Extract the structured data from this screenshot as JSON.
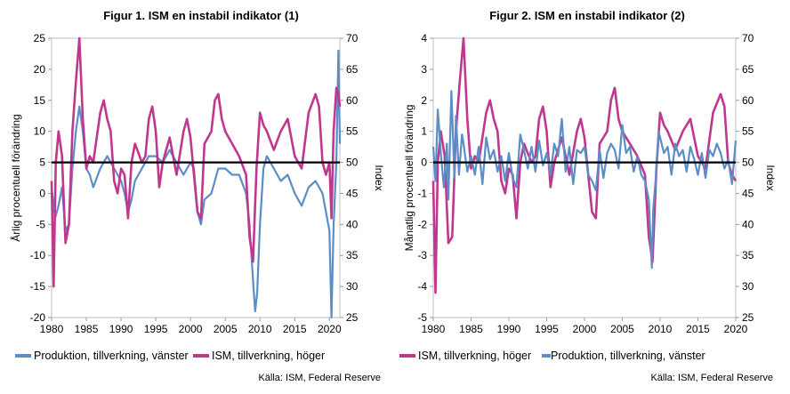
{
  "charts": [
    {
      "title": "Figur 1. ISM en instabil indikator (1)",
      "ylabel_left": "Årlig procentuell förändring",
      "ylabel_right": "Index",
      "source": "Källa: ISM, Federal Reserve",
      "legend": [
        "Produktion, tillverkning, vänster",
        "ISM, tillverkning, höger"
      ]
    },
    {
      "title": "Figur 2. ISM en instabil indikator (2)",
      "ylabel_left": "Månatlig procentuell förändring",
      "ylabel_right": "Index",
      "source": "Källa: ISM, Federal Reserve",
      "legend": [
        "ISM, tillverkning, höger",
        "Produktion, tillverkning, vänster"
      ]
    }
  ],
  "chart_data": [
    {
      "type": "line",
      "title": "Figur 1. ISM en instabil indikator (1)",
      "ylabel": "Årlig procentuell förändring",
      "y2label": "Index",
      "xlim": [
        1980,
        2021.5
      ],
      "ylim": [
        -20,
        25
      ],
      "y2lim": [
        25,
        70
      ],
      "x_ticks": [
        "1980",
        "1985",
        "1990",
        "1995",
        "2000",
        "2005",
        "2010",
        "2015",
        "2020"
      ],
      "y_ticks": [
        "25",
        "20",
        "15",
        "10",
        "5",
        "0",
        "-5",
        "-10",
        "-15",
        "-20"
      ],
      "y2_ticks": [
        "70",
        "65",
        "60",
        "55",
        "50",
        "45",
        "40",
        "35",
        "30",
        "25"
      ],
      "colors": {
        "production": "#5b8dc9",
        "ism": "#c0388d",
        "reference": "#000000"
      },
      "series": [
        {
          "name": "Produktion, tillverkning, vänster",
          "axis": "left",
          "color": "#5b8dc9",
          "x": [
            1980,
            1980.5,
            1981,
            1981.5,
            1982,
            1982.5,
            1983,
            1983.5,
            1984,
            1984.5,
            1985,
            1985.5,
            1986,
            1987,
            1988,
            1989,
            1990,
            1990.5,
            1991,
            1991.5,
            1992,
            1993,
            1994,
            1995,
            1996,
            1997,
            1998,
            1999,
            2000,
            2000.5,
            2001,
            2001.5,
            2002,
            2003,
            2004,
            2005,
            2006,
            2007,
            2008,
            2008.5,
            2009,
            2009.3,
            2009.6,
            2010,
            2010.5,
            2011,
            2012,
            2013,
            2014,
            2015,
            2016,
            2017,
            2018,
            2019,
            2019.5,
            2020,
            2020.3,
            2020.6,
            2021,
            2021.3,
            2021.5
          ],
          "y": [
            1,
            -4,
            -2,
            1,
            -6,
            -5,
            4,
            10,
            14,
            10,
            4,
            3,
            1,
            4,
            6,
            4,
            2,
            0,
            -3,
            -1,
            2,
            4,
            6,
            6,
            5,
            7,
            5,
            3,
            5,
            4,
            -3,
            -5,
            -1,
            0,
            4,
            4,
            3,
            3,
            0,
            -5,
            -14,
            -19,
            -16,
            -5,
            4,
            6,
            4,
            2,
            3,
            0,
            -2,
            1,
            2,
            0,
            -3,
            -6,
            -20,
            -5,
            5,
            23,
            8
          ]
        },
        {
          "name": "ISM, tillverkning, höger",
          "axis": "right",
          "color": "#c0388d",
          "x": [
            1980,
            1980.3,
            1980.6,
            1981,
            1981.5,
            1982,
            1982.5,
            1983,
            1983.5,
            1984,
            1984.5,
            1985,
            1985.5,
            1986,
            1987,
            1987.5,
            1988,
            1988.5,
            1989,
            1989.5,
            1990,
            1990.5,
            1991,
            1991.5,
            1992,
            1993,
            1993.5,
            1994,
            1994.5,
            1995,
            1995.5,
            1996,
            1997,
            1998,
            1999,
            1999.5,
            2000,
            2000.5,
            2001,
            2001.5,
            2002,
            2003,
            2003.5,
            2004,
            2004.5,
            2005,
            2006,
            2007,
            2008,
            2008.5,
            2009,
            2009.5,
            2010,
            2010.5,
            2011,
            2012,
            2013,
            2014,
            2015,
            2016,
            2017,
            2018,
            2018.5,
            2019,
            2019.5,
            2020,
            2020.3,
            2020.6,
            2021,
            2021.3,
            2021.5
          ],
          "y": [
            47,
            30,
            50,
            55,
            51,
            37,
            40,
            55,
            63,
            70,
            57,
            49,
            51,
            50,
            58,
            60,
            57,
            55,
            47,
            45,
            49,
            48,
            41,
            50,
            53,
            50,
            51,
            57,
            59,
            55,
            46,
            50,
            54,
            48,
            55,
            57,
            54,
            48,
            42,
            41,
            53,
            55,
            60,
            61,
            57,
            55,
            53,
            51,
            48,
            38,
            34,
            49,
            58,
            56,
            55,
            52,
            55,
            57,
            51,
            49,
            58,
            61,
            59,
            50,
            48,
            50,
            41,
            55,
            62,
            61,
            59
          ]
        },
        {
          "name": "",
          "axis": "left",
          "color": "#000000",
          "x": [
            1980,
            2021.5
          ],
          "y": [
            5,
            5
          ]
        }
      ]
    },
    {
      "type": "line",
      "title": "Figur 2. ISM en instabil indikator (2)",
      "ylabel": "Månatlig procentuell förändring",
      "y2label": "Index",
      "xlim": [
        1980,
        2020
      ],
      "ylim": [
        -5,
        4
      ],
      "y2lim": [
        25,
        70
      ],
      "x_ticks": [
        "1980",
        "1985",
        "1990",
        "1995",
        "2000",
        "2005",
        "2010",
        "2015",
        "2020"
      ],
      "y_ticks": [
        "4",
        "3",
        "2",
        "1",
        "0",
        "-1",
        "-2",
        "-3",
        "-4",
        "-5"
      ],
      "y2_ticks": [
        "70",
        "65",
        "60",
        "55",
        "50",
        "45",
        "40",
        "35",
        "30",
        "25"
      ],
      "colors": {
        "production": "#5b8dc9",
        "ism": "#c0388d",
        "reference": "#000000"
      },
      "series": [
        {
          "name": "ISM, tillverkning, höger",
          "axis": "right",
          "color": "#c0388d",
          "x": [
            1980,
            1980.3,
            1980.6,
            1981,
            1981.5,
            1982,
            1982.5,
            1983,
            1983.5,
            1984,
            1984.5,
            1985,
            1985.5,
            1986,
            1987,
            1987.5,
            1988,
            1988.5,
            1989,
            1989.5,
            1990,
            1990.5,
            1991,
            1991.5,
            1992,
            1993,
            1993.5,
            1994,
            1994.5,
            1995,
            1995.5,
            1996,
            1997,
            1998,
            1999,
            1999.5,
            2000,
            2000.5,
            2001,
            2001.5,
            2002,
            2003,
            2003.5,
            2004,
            2004.5,
            2005,
            2006,
            2007,
            2008,
            2008.5,
            2009,
            2009.5,
            2010,
            2010.5,
            2011,
            2012,
            2013,
            2014,
            2015,
            2016,
            2017,
            2018,
            2018.5,
            2019,
            2019.5,
            2020
          ],
          "y": [
            47,
            29,
            50,
            55,
            51,
            37,
            38,
            55,
            63,
            70,
            57,
            49,
            51,
            50,
            58,
            60,
            57,
            55,
            47,
            45,
            49,
            48,
            41,
            50,
            53,
            50,
            51,
            57,
            59,
            55,
            46,
            50,
            54,
            48,
            55,
            57,
            54,
            48,
            42,
            41,
            53,
            55,
            60,
            62,
            57,
            55,
            53,
            51,
            48,
            38,
            34,
            49,
            58,
            56,
            55,
            52,
            55,
            57,
            51,
            49,
            58,
            61,
            59,
            50,
            48,
            47
          ]
        },
        {
          "name": "Produktion, tillverkning, vänster",
          "axis": "left",
          "color": "#5b8dc9",
          "x": [
            1980,
            1980.3,
            1980.6,
            1981,
            1981.4,
            1981.8,
            1982,
            1982.4,
            1982.8,
            1983,
            1983.4,
            1983.8,
            1984,
            1984.5,
            1985,
            1985.5,
            1986,
            1986.5,
            1987,
            1987.5,
            1988,
            1988.5,
            1989,
            1989.5,
            1990,
            1990.5,
            1991,
            1991.5,
            1992,
            1992.5,
            1993,
            1993.5,
            1994,
            1994.5,
            1995,
            1995.5,
            1996,
            1996.5,
            1997,
            1997.5,
            1998,
            1998.5,
            1999,
            1999.5,
            2000,
            2000.5,
            2001,
            2001.5,
            2002,
            2002.5,
            2003,
            2003.5,
            2004,
            2004.5,
            2005,
            2005.5,
            2006,
            2006.5,
            2007,
            2007.5,
            2008,
            2008.5,
            2008.9,
            2009.1,
            2009.4,
            2009.8,
            2010,
            2010.5,
            2011,
            2011.5,
            2012,
            2012.5,
            2013,
            2013.5,
            2014,
            2014.5,
            2015,
            2015.5,
            2016,
            2016.5,
            2017,
            2017.5,
            2018,
            2018.5,
            2019,
            2019.5,
            2020
          ],
          "y": [
            0.5,
            -0.6,
            1.7,
            0.3,
            -0.8,
            0.6,
            -1.2,
            2.3,
            -0.5,
            1.5,
            -0.4,
            0.9,
            0.6,
            -0.3,
            0.2,
            -0.4,
            0.5,
            -0.7,
            0.8,
            0.1,
            0.4,
            -0.3,
            0.2,
            -0.6,
            0.3,
            -0.5,
            -0.8,
            0.9,
            0.4,
            -0.2,
            0.5,
            -0.3,
            0.7,
            -0.1,
            0.3,
            -0.4,
            0.6,
            0.2,
            1.4,
            -0.3,
            0.5,
            -0.7,
            0.4,
            0.3,
            0.5,
            -0.4,
            -0.6,
            -0.9,
            0.4,
            -0.5,
            0.3,
            0.6,
            0.4,
            -0.2,
            1.2,
            0.3,
            0.5,
            -0.3,
            0.2,
            -0.4,
            -0.6,
            -1.2,
            -3.4,
            -1.5,
            -0.6,
            1.0,
            0.8,
            0.3,
            0.5,
            -0.4,
            0.6,
            0.2,
            0.4,
            -0.3,
            0.5,
            0.1,
            -0.4,
            0.3,
            -0.5,
            0.4,
            0.2,
            0.6,
            0.3,
            -0.2,
            0.1,
            -0.7,
            0.7
          ]
        },
        {
          "name": "",
          "axis": "left",
          "color": "#000000",
          "x": [
            1980,
            2020
          ],
          "y": [
            0,
            0
          ]
        }
      ]
    }
  ]
}
